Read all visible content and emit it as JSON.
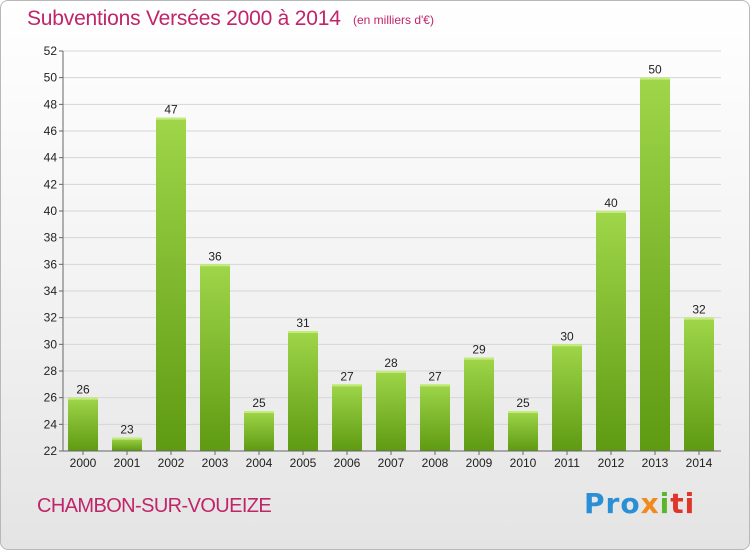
{
  "title": "Subventions Versées 2000 à 2014",
  "subtitle": "(en milliers d'€)",
  "place": "CHAMBON-SUR-VOUEIZE",
  "logo": {
    "parts": [
      "Pro",
      "x",
      "i",
      "ti"
    ]
  },
  "colors": {
    "title": "#c0246a",
    "bar_top": "#9fd64a",
    "bar_bottom": "#5e9a12",
    "grid": "#d6d6d6"
  },
  "chart_data": {
    "type": "bar",
    "categories": [
      "2000",
      "2001",
      "2002",
      "2003",
      "2004",
      "2005",
      "2006",
      "2007",
      "2008",
      "2009",
      "2010",
      "2011",
      "2012",
      "2013",
      "2014"
    ],
    "values": [
      26,
      23,
      47,
      36,
      25,
      31,
      27,
      28,
      27,
      29,
      25,
      30,
      40,
      50,
      32
    ],
    "data_labels": [
      "26",
      "23",
      "47",
      "36",
      "25",
      "31",
      "27",
      "28",
      "27",
      "29",
      "25",
      "30",
      "40",
      "50",
      "32"
    ],
    "ylim": [
      22,
      52
    ],
    "yticks": [
      "22",
      "24",
      "26",
      "28",
      "30",
      "32",
      "34",
      "36",
      "38",
      "40",
      "42",
      "44",
      "46",
      "48",
      "50",
      "52"
    ],
    "grid": true,
    "title": "Subventions Versées 2000 à 2014",
    "xlabel": "",
    "ylabel": ""
  }
}
